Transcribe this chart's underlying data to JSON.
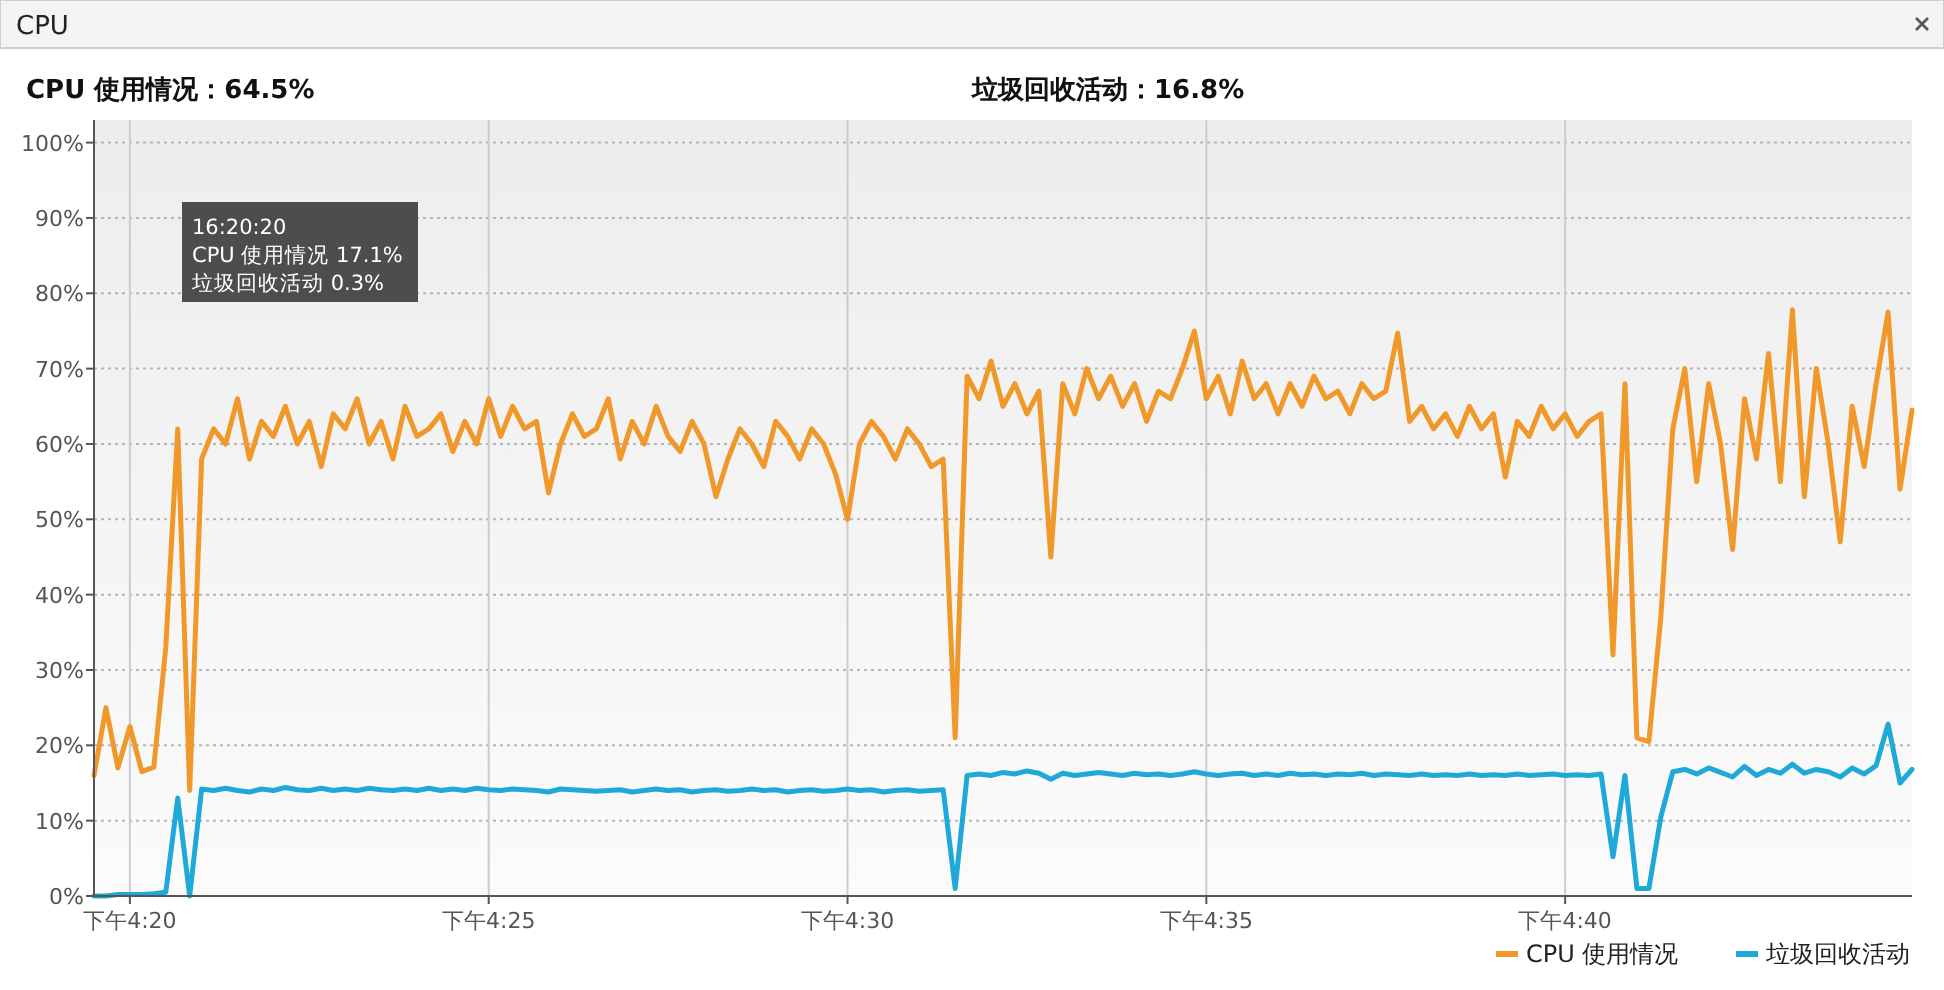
{
  "chart_data": {
    "type": "line",
    "title": "CPU",
    "annotations": [
      "CPU 使用情况：64.5%",
      "垃圾回收活动：16.8%",
      "16:20:20",
      "CPU 使用情况 17.1%",
      "垃圾回收活动 0.3%"
    ],
    "categories": [
      null,
      null,
      null,
      "下午4:20",
      null,
      null,
      null,
      null,
      null,
      null,
      null,
      null,
      null,
      null,
      null,
      null,
      null,
      null,
      null,
      null,
      null,
      null,
      null,
      null,
      null,
      null,
      null,
      null,
      null,
      null,
      null,
      null,
      null,
      "下午4:25",
      null,
      null,
      null,
      null,
      null,
      null,
      null,
      null,
      null,
      null,
      null,
      null,
      null,
      null,
      null,
      null,
      null,
      null,
      null,
      null,
      null,
      null,
      null,
      null,
      null,
      null,
      null,
      null,
      null,
      "下午4:30",
      null,
      null,
      null,
      null,
      null,
      null,
      null,
      null,
      null,
      null,
      null,
      null,
      null,
      null,
      null,
      null,
      null,
      null,
      null,
      null,
      null,
      null,
      null,
      null,
      null,
      null,
      null,
      null,
      null,
      "下午4:35",
      null,
      null,
      null,
      null,
      null,
      null,
      null,
      null,
      null,
      null,
      null,
      null,
      null,
      null,
      null,
      null,
      null,
      null,
      null,
      null,
      null,
      null,
      null,
      null,
      null,
      null,
      null,
      null,
      null,
      "下午4:40",
      null,
      null,
      null,
      null,
      null,
      null,
      null,
      null,
      null,
      null,
      null,
      null,
      null,
      null,
      null,
      null,
      null,
      null,
      null,
      null,
      null,
      null,
      null,
      null,
      null,
      null,
      null,
      null,
      null
    ],
    "series": [
      {
        "name": "CPU 使用情况",
        "color": "#f0992a",
        "values": [
          16,
          25,
          17,
          22.5,
          16.5,
          17.1,
          33,
          62,
          14,
          58,
          62,
          60,
          66,
          58,
          63,
          61,
          65,
          60,
          63,
          57,
          64,
          62,
          66,
          60,
          63,
          58,
          65,
          61,
          62,
          64,
          59,
          63,
          60,
          66,
          61,
          65,
          62,
          63,
          53.5,
          60,
          64,
          61,
          62,
          66,
          58,
          63,
          60,
          65,
          61,
          59,
          63,
          60,
          53,
          58,
          62,
          60,
          57,
          63,
          61,
          58,
          62,
          60,
          56,
          50,
          60,
          63,
          61,
          58,
          62,
          60,
          57,
          58,
          21,
          69,
          66,
          71,
          65,
          68,
          64,
          67,
          45,
          68,
          64,
          70,
          66,
          69,
          65,
          68,
          63,
          67,
          66,
          70,
          75,
          66,
          69,
          64,
          71,
          66,
          68,
          64,
          68,
          65,
          69,
          66,
          67,
          64,
          68,
          66,
          67,
          74.7,
          63,
          65,
          62,
          64,
          61,
          65,
          62,
          64,
          55.6,
          63,
          61,
          65,
          62,
          64,
          61,
          63,
          64,
          32,
          68,
          21,
          20.5,
          37,
          62,
          70,
          55,
          68,
          60,
          46,
          66,
          58,
          72,
          55,
          77.8,
          53,
          70,
          60,
          47,
          65,
          57,
          68,
          77.5,
          54,
          64.5
        ]
      },
      {
        "name": "垃圾回收活动",
        "color": "#1fa9d8",
        "values": [
          0,
          0,
          0.2,
          0.2,
          0.2,
          0.3,
          0.5,
          13,
          0,
          14.2,
          14,
          14.3,
          14,
          13.8,
          14.2,
          14,
          14.4,
          14.1,
          14,
          14.3,
          14,
          14.2,
          14,
          14.3,
          14.1,
          14,
          14.2,
          14,
          14.3,
          14,
          14.2,
          14,
          14.3,
          14.1,
          14,
          14.2,
          14.1,
          14,
          13.8,
          14.2,
          14.1,
          14,
          13.9,
          14,
          14.1,
          13.8,
          14,
          14.2,
          14,
          14.1,
          13.8,
          14,
          14.1,
          13.9,
          14,
          14.2,
          14,
          14.1,
          13.8,
          14,
          14.1,
          13.9,
          14,
          14.2,
          14,
          14.1,
          13.8,
          14,
          14.1,
          13.9,
          14,
          14.1,
          1,
          16,
          16.2,
          16,
          16.4,
          16.2,
          16.6,
          16.3,
          15.5,
          16.3,
          16,
          16.2,
          16.4,
          16.2,
          16,
          16.3,
          16.1,
          16.2,
          16,
          16.2,
          16.5,
          16.2,
          16,
          16.2,
          16.3,
          16,
          16.2,
          16,
          16.3,
          16.1,
          16.2,
          16,
          16.2,
          16.1,
          16.3,
          16,
          16.2,
          16.1,
          16,
          16.2,
          16,
          16.1,
          16,
          16.2,
          16,
          16.1,
          16,
          16.2,
          16,
          16.1,
          16.2,
          16,
          16.1,
          16,
          16.2,
          5.2,
          16,
          1,
          1,
          10.5,
          16.5,
          16.8,
          16.2,
          17,
          16.4,
          15.8,
          17.2,
          16,
          16.8,
          16.3,
          17.5,
          16.3,
          16.8,
          16.5,
          15.8,
          17,
          16.2,
          17.3,
          22.8,
          15,
          16.8
        ]
      }
    ],
    "ylim": [
      0,
      103
    ],
    "yticks": [
      {
        "value": 0,
        "label": "0%"
      },
      {
        "value": 10,
        "label": "10%"
      },
      {
        "value": 20,
        "label": "20%"
      },
      {
        "value": 30,
        "label": "30%"
      },
      {
        "value": 40,
        "label": "40%"
      },
      {
        "value": 50,
        "label": "50%"
      },
      {
        "value": 60,
        "label": "60%"
      },
      {
        "value": 70,
        "label": "70%"
      },
      {
        "value": 80,
        "label": "80%"
      },
      {
        "value": 90,
        "label": "90%"
      },
      {
        "value": 100,
        "label": "100%"
      }
    ],
    "grid": true,
    "legend": "bottom right"
  }
}
